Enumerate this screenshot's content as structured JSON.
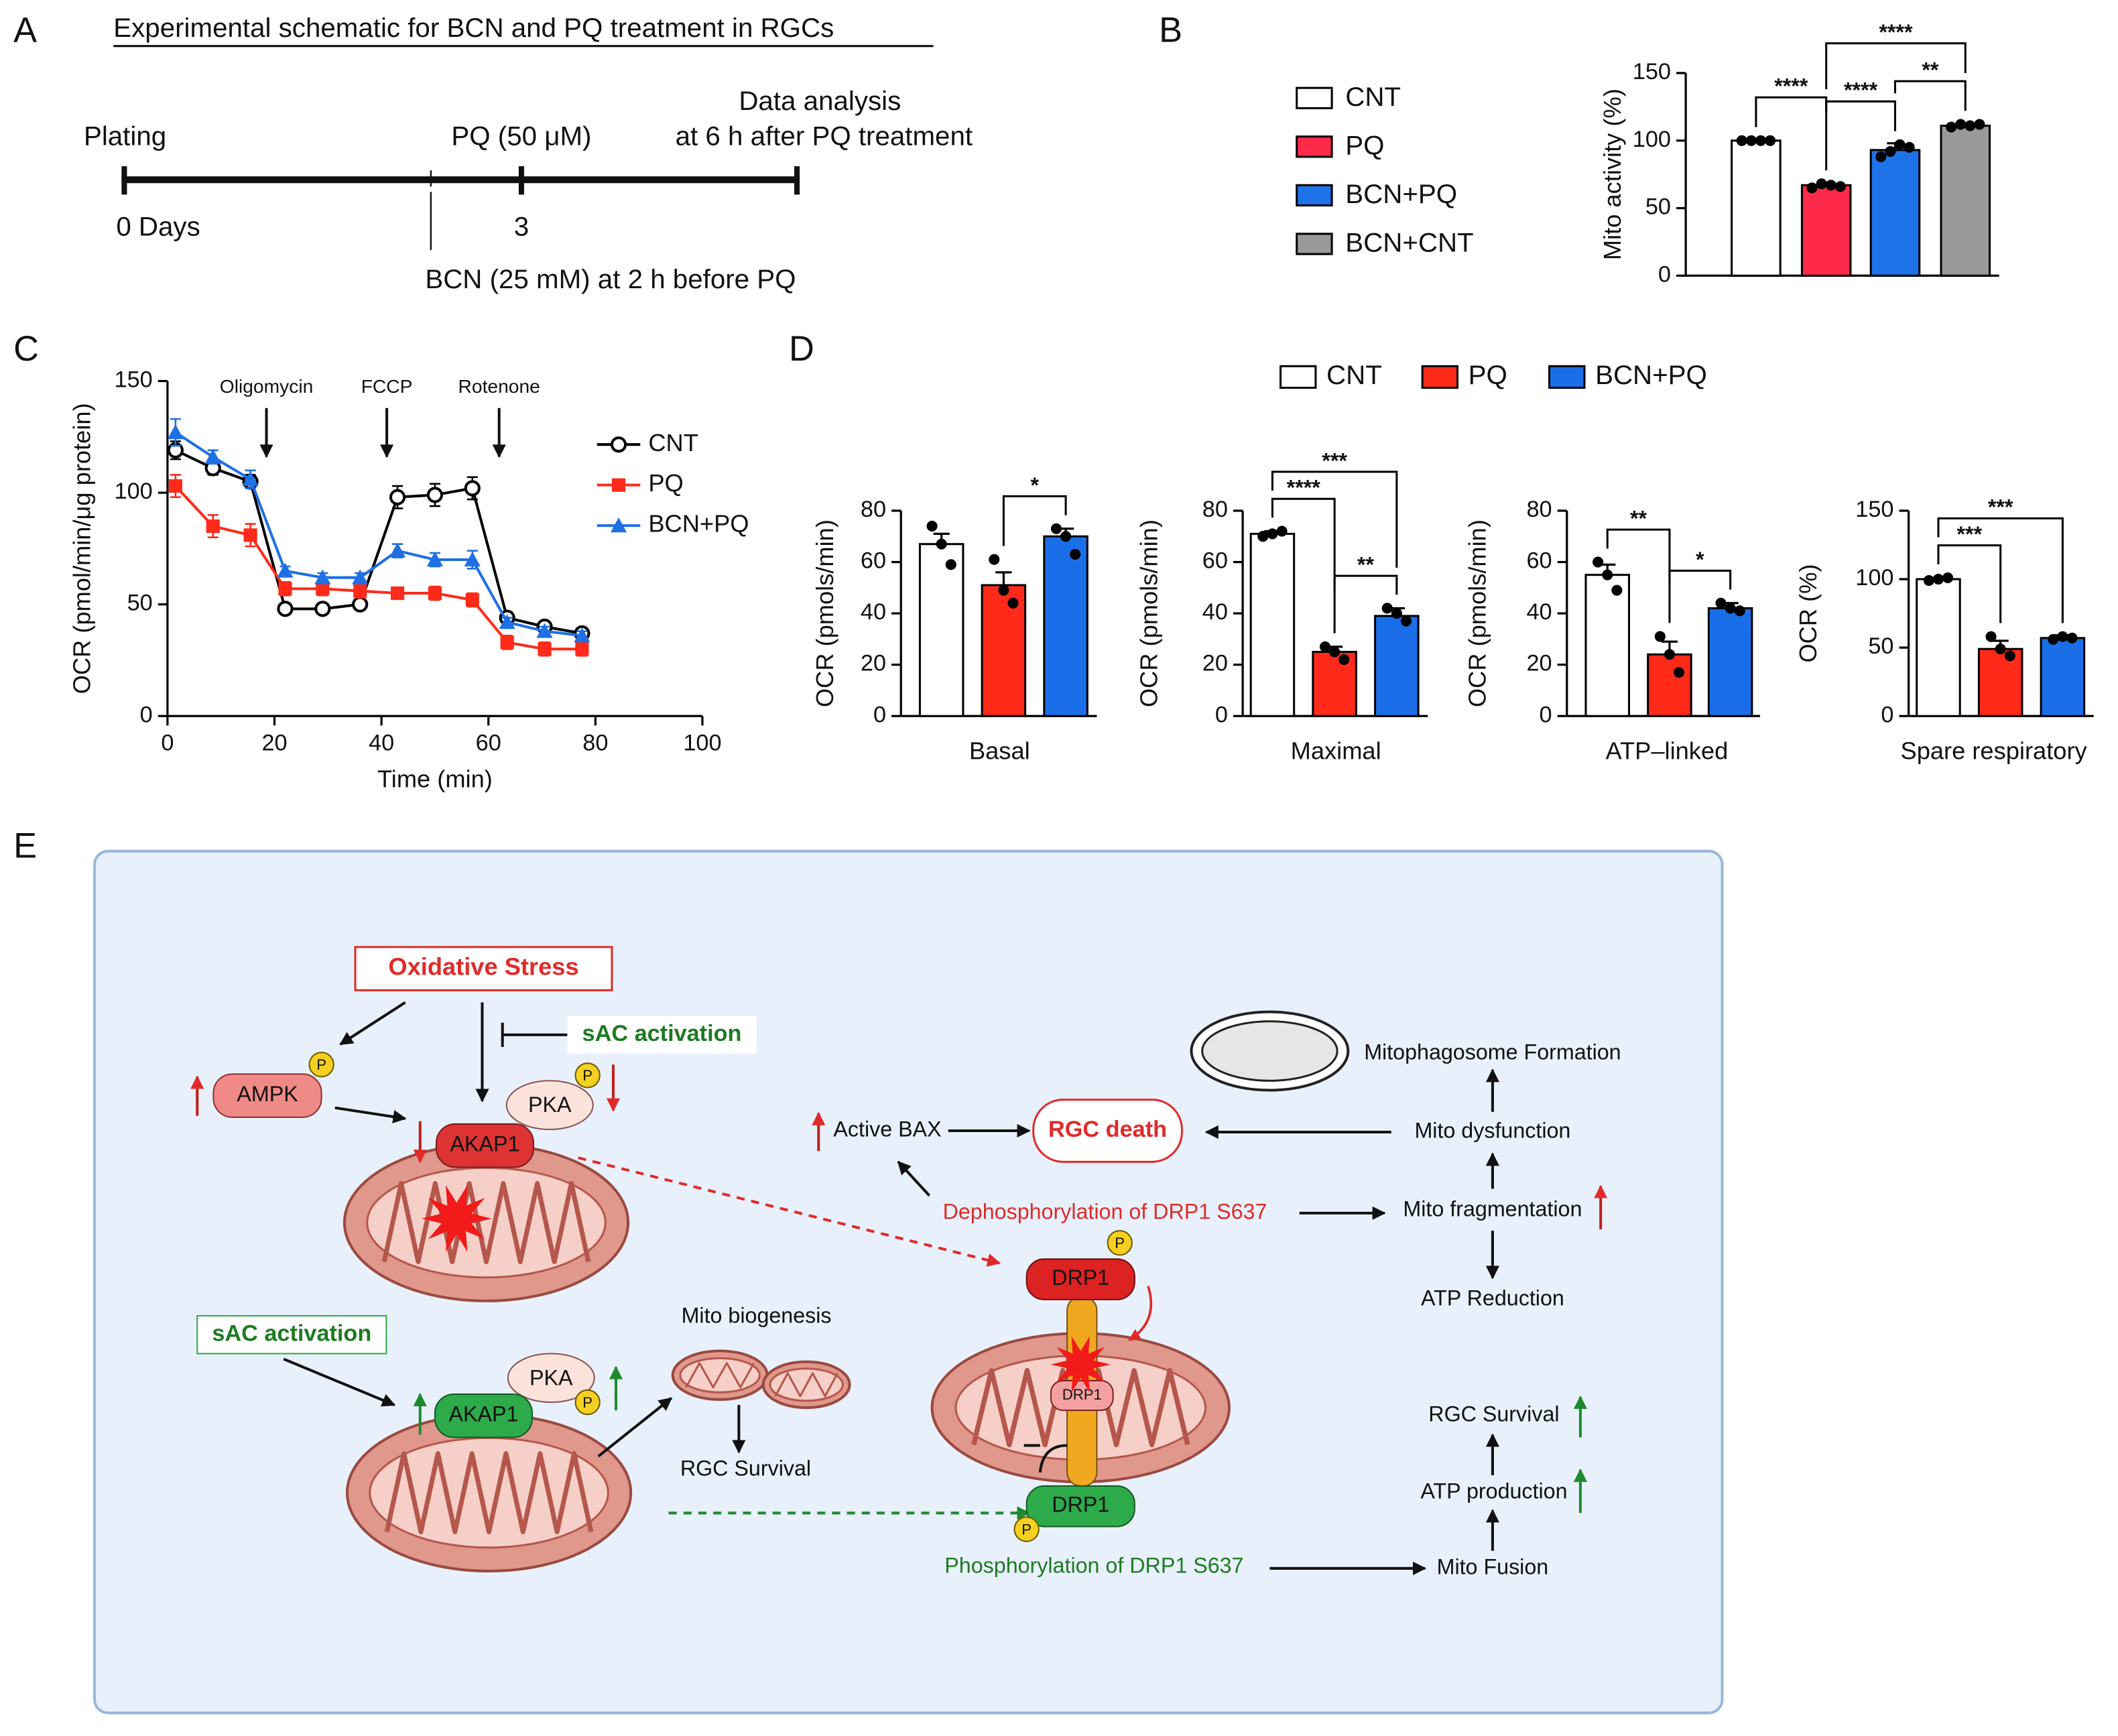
{
  "panel_labels": [
    "A",
    "B",
    "C",
    "D",
    "E"
  ],
  "schematic": {
    "title": "Experimental schematic for BCN and PQ treatment in RGCs",
    "plating": "Plating",
    "pq": "PQ (50 μM)",
    "analysis": [
      "Data analysis",
      "at 6 h after PQ treatment"
    ],
    "day0": "0 Days",
    "day3": "3",
    "bcn": "BCN (25 mM) at 2 h before PQ"
  },
  "chart_data": [
    {
      "type": "bar",
      "ylabel": "Mito activity (%)",
      "ylim": [
        0,
        150
      ],
      "yticks": [
        0,
        50,
        100,
        150
      ],
      "categories": [
        null
      ],
      "series": [
        {
          "name": "CNT",
          "color": "#ffffff",
          "values": [
            100
          ],
          "errors": [
            0.5
          ],
          "points": [
            [
              100,
              100,
              100,
              100
            ]
          ]
        },
        {
          "name": "PQ",
          "color": "#ff2a4a",
          "values": [
            67
          ],
          "errors": [
            2
          ],
          "points": [
            [
              65,
              68,
              67,
              66
            ]
          ]
        },
        {
          "name": "BCN+PQ",
          "color": "#1e73e8",
          "values": [
            93
          ],
          "errors": [
            5
          ],
          "points": [
            [
              88,
              92,
              97,
              95
            ]
          ]
        },
        {
          "name": "BCN+CNT",
          "color": "#999999",
          "values": [
            111
          ],
          "errors": [
            1
          ],
          "points": [
            [
              110,
              112,
              111,
              112
            ]
          ]
        }
      ],
      "annotations": [
        {
          "from": 0,
          "to": 1,
          "label": "****"
        },
        {
          "from": 1,
          "to": 2,
          "label": "****"
        },
        {
          "from": 2,
          "to": 3,
          "label": "**"
        },
        {
          "from": 1,
          "to": 3,
          "label": "****"
        }
      ]
    },
    {
      "type": "line",
      "xlabel": "Time (min)",
      "ylabel": "OCR (pmol/min/μg protein)",
      "xlim": [
        0,
        100
      ],
      "xticks": [
        0,
        20,
        40,
        60,
        80,
        100
      ],
      "ylim": [
        0,
        150
      ],
      "yticks": [
        0,
        50,
        100,
        150
      ],
      "x": [
        1.5,
        8.5,
        15.5,
        22,
        29,
        36,
        43,
        50,
        57,
        63.5,
        70.5,
        77.5
      ],
      "events": [
        {
          "label": "Oligomycin",
          "x": 18.5
        },
        {
          "label": "FCCP",
          "x": 41
        },
        {
          "label": "Rotenone",
          "x": 62
        }
      ],
      "series": [
        {
          "name": "CNT",
          "color": "#000000",
          "marker": "circle",
          "values": [
            119,
            111,
            105,
            48,
            48,
            50,
            98,
            99,
            102,
            44,
            40,
            37
          ],
          "errors": [
            4,
            3,
            3,
            2,
            2,
            2,
            5,
            5,
            5,
            2,
            2,
            2
          ]
        },
        {
          "name": "PQ",
          "color": "#ff2a1a",
          "marker": "square",
          "values": [
            103,
            85,
            81,
            57,
            57,
            56,
            55,
            55,
            52,
            33,
            30,
            30
          ],
          "errors": [
            5,
            5,
            5,
            3,
            3,
            3,
            2,
            3,
            3,
            3,
            3,
            3
          ]
        },
        {
          "name": "BCN+PQ",
          "color": "#1f6fe5",
          "marker": "triangle",
          "values": [
            127,
            116,
            106,
            65,
            62,
            62,
            74,
            70,
            70,
            42,
            38,
            36
          ],
          "errors": [
            6,
            3,
            4,
            2,
            2,
            2,
            3,
            3,
            4,
            2,
            2,
            2
          ]
        }
      ]
    },
    {
      "type": "bar-panels",
      "series": [
        {
          "name": "CNT",
          "color": "#ffffff"
        },
        {
          "name": "PQ",
          "color": "#ff2a1a"
        },
        {
          "name": "BCN+PQ",
          "color": "#1a6fe8"
        }
      ],
      "panels": [
        {
          "xlabel": "Basal",
          "ylabel": "OCR (pmols/min)",
          "ylim": [
            0,
            80
          ],
          "yticks": [
            0,
            20,
            40,
            60,
            80
          ],
          "values": [
            67,
            51,
            70
          ],
          "errors": [
            4,
            5,
            3
          ],
          "points": [
            [
              74,
              67,
              59
            ],
            [
              61,
              49,
              44
            ],
            [
              73,
              70,
              63
            ]
          ],
          "annotations": [
            {
              "from": 1,
              "to": 2,
              "label": "*"
            }
          ]
        },
        {
          "xlabel": "Maximal",
          "ylabel": "OCR (pmols/min)",
          "ylim": [
            0,
            80
          ],
          "yticks": [
            0,
            20,
            40,
            60,
            80
          ],
          "values": [
            71,
            25,
            39
          ],
          "errors": [
            1,
            2,
            3
          ],
          "points": [
            [
              70,
              71,
              72
            ],
            [
              27,
              25,
              22
            ],
            [
              42,
              40,
              37
            ]
          ],
          "annotations": [
            {
              "from": 0,
              "to": 1,
              "label": "****"
            },
            {
              "from": 1,
              "to": 2,
              "label": "**"
            },
            {
              "from": 0,
              "to": 2,
              "label": "***"
            }
          ]
        },
        {
          "xlabel": "ATP–linked",
          "ylabel": "OCR (pmols/min)",
          "ylim": [
            0,
            80
          ],
          "yticks": [
            0,
            20,
            40,
            60,
            80
          ],
          "values": [
            55,
            24,
            42
          ],
          "errors": [
            4,
            5,
            2
          ],
          "points": [
            [
              60,
              55,
              49
            ],
            [
              31,
              24,
              17
            ],
            [
              44,
              42,
              41
            ]
          ],
          "annotations": [
            {
              "from": 0,
              "to": 1,
              "label": "**"
            },
            {
              "from": 1,
              "to": 2,
              "label": "*"
            }
          ]
        },
        {
          "xlabel": "Spare respiratory",
          "ylabel": "OCR (%)",
          "ylim": [
            0,
            150
          ],
          "yticks": [
            0,
            50,
            100,
            150
          ],
          "values": [
            100,
            49,
            57
          ],
          "errors": [
            1,
            6,
            2
          ],
          "points": [
            [
              99,
              100,
              101
            ],
            [
              58,
              49,
              44
            ],
            [
              56,
              58,
              57
            ]
          ],
          "annotations": [
            {
              "from": 0,
              "to": 1,
              "label": "***"
            },
            {
              "from": 0,
              "to": 2,
              "label": "***"
            }
          ]
        }
      ]
    }
  ],
  "diagram": {
    "oxidative_stress": "Oxidative Stress",
    "sac_activation": [
      "sAC activation",
      "sAC activation"
    ],
    "ampk": "AMPK",
    "pka": [
      "PKA",
      "PKA"
    ],
    "akap1": [
      "AKAP1",
      "AKAP1"
    ],
    "phospho": [
      "P",
      "P",
      "P",
      "P",
      "P"
    ],
    "mito_biogenesis": "Mito biogenesis",
    "rgc_survival": [
      "RGC Survival",
      "RGC Survival"
    ],
    "active_bax": "Active BAX",
    "rgc_death": "RGC death",
    "dephosphorylation": "Dephosphorylation of DRP1 S637",
    "phosphorylation": "Phosphorylation of DRP1 S637",
    "drp1": [
      "DRP1",
      "DRP1",
      "DRP1"
    ],
    "mitophagosome": "Mitophagosome Formation",
    "mito_dysfunction": "Mito dysfunction",
    "mito_fragmentation": "Mito fragmentation",
    "atp_reduction": "ATP Reduction",
    "atp_production": "ATP production",
    "mito_fusion": "Mito Fusion"
  }
}
